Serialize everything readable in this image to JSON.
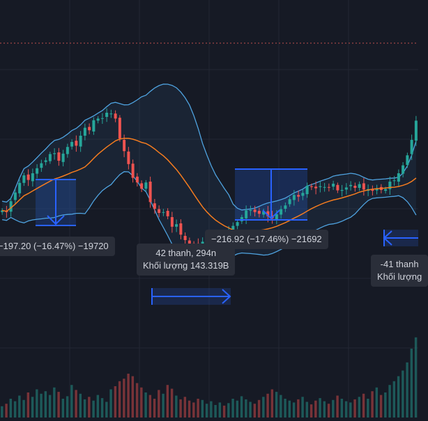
{
  "colors": {
    "background": "#161a25",
    "grid": "#232733",
    "price_line": "#c0504d",
    "up_candle": "#26a69a",
    "down_candle": "#ef5350",
    "bollinger": "#4fa3e0",
    "basis": "#f57c1f",
    "measure": "#2962ff",
    "measure_fill": "#1e3a7a",
    "label_bg": "#2a2e39",
    "label_text": "#d1d4dc"
  },
  "measure_labels": {
    "m1": "−197.20 (−16.47%) −19720",
    "m2": "−216.92 (−17.46%) −21692",
    "m3_line1": "42 thanh, 294n",
    "m3_line2": "Khối lượng 143.319B",
    "m4_line1": "-41 thanh",
    "m4_line2": "Khối lượng"
  },
  "chart_data": {
    "type": "candlestick",
    "indicators": [
      "bollinger-bands-upper",
      "bollinger-bands-basis",
      "bollinger-bands-lower",
      "volume"
    ],
    "close": [
      1146,
      1142,
      1168,
      1189,
      1212,
      1230,
      1219,
      1235,
      1247,
      1259,
      1266,
      1281,
      1283,
      1265,
      1282,
      1298,
      1310,
      1301,
      1325,
      1344,
      1338,
      1362,
      1366,
      1367,
      1380,
      1378,
      1366,
      1318,
      1288,
      1257,
      1224,
      1213,
      1198,
      1213,
      1166,
      1150,
      1140,
      1142,
      1132,
      1107,
      1113,
      1088,
      1075,
      1066,
      1064,
      1066,
      1071,
      1071,
      1076,
      1080,
      1082,
      1082,
      1099,
      1109,
      1118,
      1130,
      1146,
      1147,
      1142,
      1138,
      1144,
      1132,
      1127,
      1137,
      1149,
      1158,
      1173,
      1183,
      1179,
      1188,
      1205,
      1202,
      1199,
      1204,
      1202,
      1201,
      1210,
      1194,
      1195,
      1201,
      1207,
      1200,
      1209,
      1196,
      1197,
      1193,
      1199,
      1195,
      1197,
      1215,
      1218,
      1235,
      1254,
      1278,
      1315,
      1361
    ],
    "volume": [
      18,
      22,
      30,
      26,
      35,
      28,
      40,
      33,
      45,
      38,
      42,
      36,
      48,
      41,
      30,
      34,
      52,
      44,
      38,
      29,
      33,
      27,
      36,
      31,
      25,
      45,
      50,
      58,
      62,
      70,
      66,
      55,
      48,
      40,
      36,
      30,
      44,
      38,
      52,
      46,
      35,
      29,
      33,
      27,
      24,
      30,
      28,
      22,
      26,
      20,
      24,
      19,
      23,
      30,
      27,
      34,
      29,
      25,
      22,
      28,
      33,
      38,
      45,
      41,
      36,
      30,
      27,
      24,
      29,
      33,
      25,
      21,
      27,
      31,
      26,
      22,
      28,
      35,
      30,
      26,
      24,
      29,
      33,
      38,
      30,
      42,
      48,
      36,
      40,
      52,
      58,
      66,
      75,
      88,
      110,
      128
    ]
  }
}
